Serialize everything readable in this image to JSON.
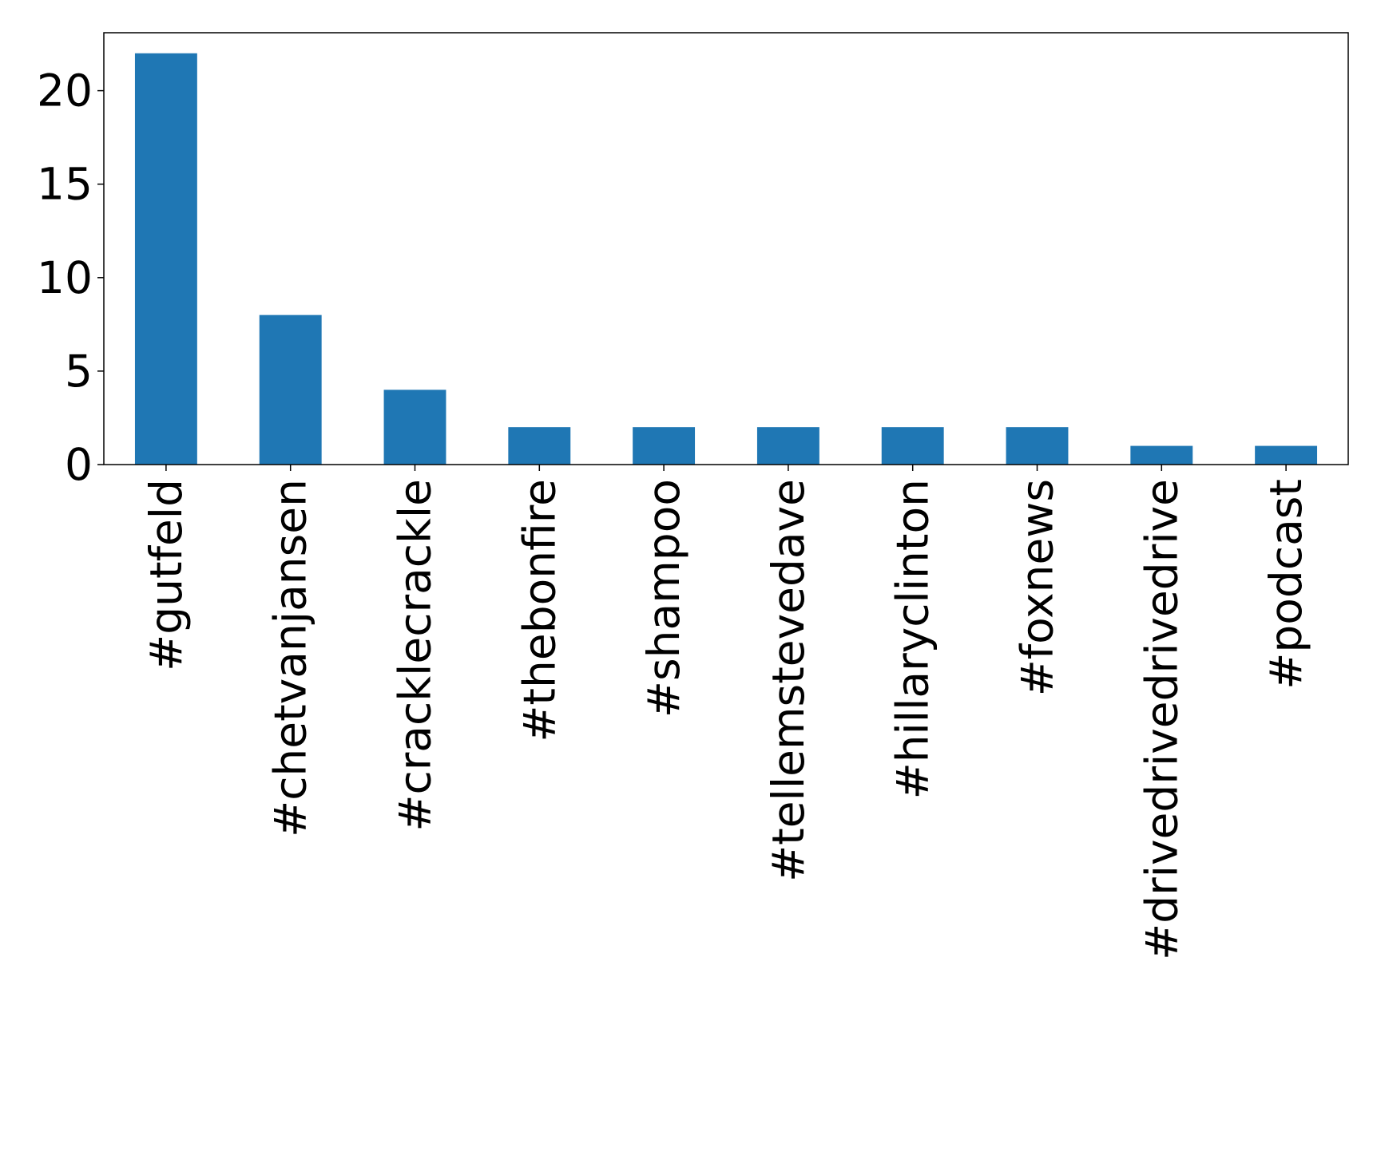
{
  "chart_data": {
    "type": "bar",
    "categories": [
      "#gutfeld",
      "#chetvanjansen",
      "#cracklecrackle",
      "#thebonfire",
      "#shampoo",
      "#tellemstevedave",
      "#hillaryclinton",
      "#foxnews",
      "#drivedrivedrivedrive",
      "#podcast"
    ],
    "values": [
      22,
      8,
      4,
      2,
      2,
      2,
      2,
      2,
      1,
      1
    ],
    "color": "#1f77b4",
    "ylim": [
      0,
      23.1
    ],
    "yticks": [
      0,
      5,
      10,
      15,
      20
    ],
    "grid": false
  }
}
